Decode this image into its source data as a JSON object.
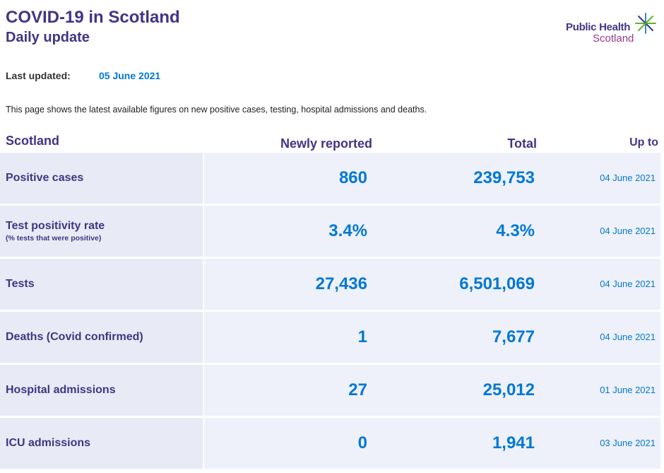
{
  "header": {
    "title": "COVID-19 in Scotland",
    "subtitle": "Daily update"
  },
  "logo": {
    "line1": "Public Health",
    "line2": "Scotland",
    "colors": {
      "primary": "#3f3685",
      "secondary": "#9b3a8e",
      "accent_green": "#5fb52b",
      "accent_blue": "#2e8bd0"
    }
  },
  "last_updated": {
    "label": "Last updated:",
    "value": "05 June 2021"
  },
  "intro": "This page shows the latest available figures on new positive cases, testing, hospital admissions and deaths.",
  "table": {
    "headers": {
      "region": "Scotland",
      "newly_reported": "Newly reported",
      "total": "Total",
      "up_to": "Up to"
    },
    "rows": [
      {
        "label": "Positive cases",
        "sublabel": "",
        "new": "860",
        "total": "239,753",
        "date": "04 June 2021"
      },
      {
        "label": "Test positivity rate",
        "sublabel": "(% tests that were positive)",
        "new": "3.4%",
        "total": "4.3%",
        "date": "04 June 2021"
      },
      {
        "label": "Tests",
        "sublabel": "",
        "new": "27,436",
        "total": "6,501,069",
        "date": "04 June 2021"
      },
      {
        "label": "Deaths (Covid confirmed)",
        "sublabel": "",
        "new": "1",
        "total": "7,677",
        "date": "04 June 2021"
      },
      {
        "label": "Hospital admissions",
        "sublabel": "",
        "new": "27",
        "total": "25,012",
        "date": "01 June 2021"
      },
      {
        "label": "ICU admissions",
        "sublabel": "",
        "new": "0",
        "total": "1,941",
        "date": "03 June 2021"
      }
    ]
  },
  "colors": {
    "heading": "#3f3685",
    "value": "#0078d4",
    "label_bg": "#e8ebf5",
    "row_bg": "#eef1f9"
  }
}
